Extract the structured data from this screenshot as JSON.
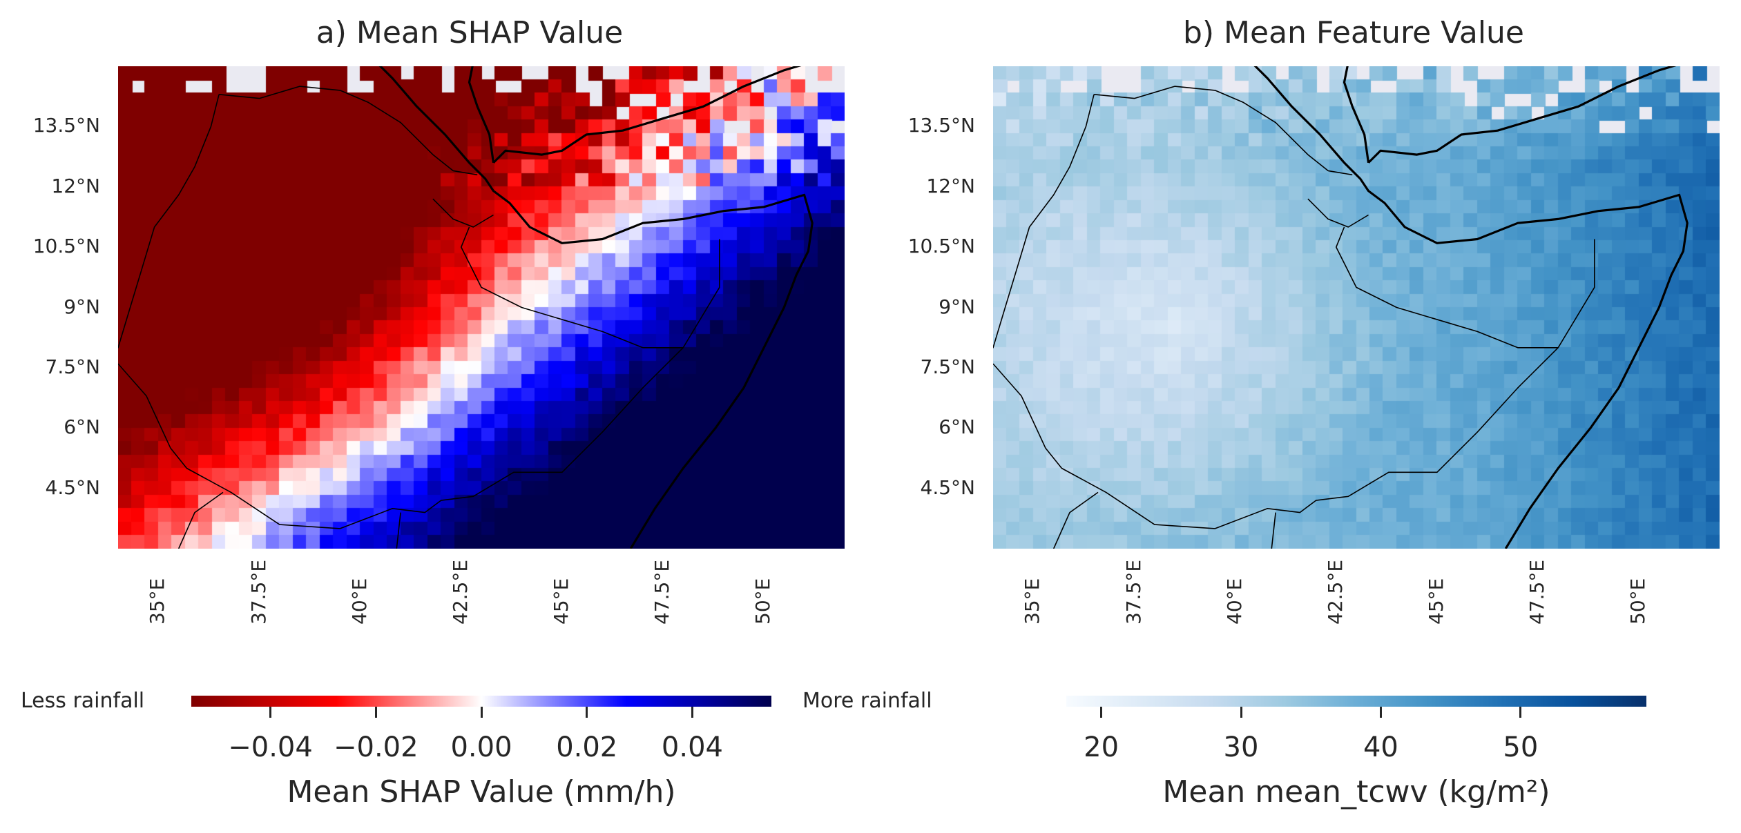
{
  "panels": {
    "a": {
      "title": "a) Mean SHAP Value",
      "colorbar": {
        "title": "Mean SHAP Value (mm/h)",
        "ticks": [
          "−0.04",
          "−0.02",
          "0.00",
          "0.02",
          "0.04"
        ],
        "tick_values": [
          -0.04,
          -0.02,
          0.0,
          0.02,
          0.04
        ],
        "range": [
          -0.055,
          0.055
        ],
        "left_label": "Less rainfall",
        "right_label": "More rainfall",
        "colormap": "seismic_r"
      }
    },
    "b": {
      "title": "b) Mean Feature Value",
      "colorbar": {
        "title": "Mean mean_tcwv (kg/m²)",
        "ticks": [
          "20",
          "30",
          "40",
          "50"
        ],
        "tick_values": [
          20,
          30,
          40,
          50
        ],
        "range": [
          17.5,
          59
        ],
        "colormap": "Blues"
      }
    }
  },
  "axes": {
    "lat_labels": [
      "13.5°N",
      "12°N",
      "10.5°N",
      "9°N",
      "7.5°N",
      "6°N",
      "4.5°N"
    ],
    "lat_values": [
      13.5,
      12,
      10.5,
      9,
      7.5,
      6,
      4.5
    ],
    "lon_labels": [
      "35°E",
      "37.5°E",
      "40°E",
      "42.5°E",
      "45°E",
      "47.5°E",
      "50°E"
    ],
    "lon_values": [
      35,
      37.5,
      40,
      42.5,
      45,
      47.5,
      50
    ],
    "lon_range": [
      34,
      52
    ],
    "lat_range": [
      3,
      15
    ]
  },
  "colors": {
    "missing": "#eaeaf2",
    "coastline": "#000000",
    "text": "#262626"
  }
}
